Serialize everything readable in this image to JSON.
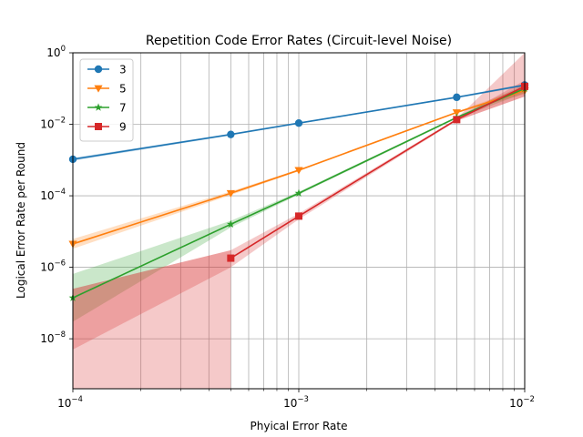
{
  "chart_data": {
    "type": "line",
    "title": "Repetition Code Error Rates (Circuit-level Noise)",
    "xlabel": "Phyical Error Rate",
    "ylabel": "Logical Error Rate per Round",
    "xscale": "log",
    "yscale": "log",
    "xlim": [
      0.0001,
      0.01
    ],
    "ylim": [
      4e-10,
      1
    ],
    "grid": true,
    "legend": "top-left",
    "x_ticks": [
      {
        "value": 0.0001,
        "base": "10",
        "exp": "−4"
      },
      {
        "value": 0.001,
        "base": "10",
        "exp": "−3"
      },
      {
        "value": 0.01,
        "base": "10",
        "exp": "−2"
      }
    ],
    "y_ticks": [
      {
        "value": 1e-08,
        "base": "10",
        "exp": "−8"
      },
      {
        "value": 1e-06,
        "base": "10",
        "exp": "−6"
      },
      {
        "value": 0.0001,
        "base": "10",
        "exp": "−4"
      },
      {
        "value": 0.01,
        "base": "10",
        "exp": "−2"
      },
      {
        "value": 1,
        "base": "10",
        "exp": "0"
      }
    ],
    "series": [
      {
        "name": "3",
        "color": "#1f77b4",
        "marker": "circle",
        "x": [
          0.0001,
          0.0005,
          0.001,
          0.005,
          0.01
        ],
        "y": [
          0.00105,
          0.0052,
          0.0108,
          0.057,
          0.125
        ],
        "band_low": [
          0.00095,
          0.0049,
          0.0103,
          0.054,
          0.115
        ],
        "band_high": [
          0.00115,
          0.0055,
          0.0113,
          0.06,
          0.135
        ]
      },
      {
        "name": "5",
        "color": "#ff7f0e",
        "marker": "triangle-down",
        "x": [
          0.0001,
          0.0005,
          0.001,
          0.005,
          0.01
        ],
        "y": [
          4.5e-06,
          0.000118,
          0.00052,
          0.0215,
          0.088
        ],
        "band_low": [
          3.3e-06,
          0.000105,
          0.00049,
          0.0205,
          0.07
        ],
        "band_high": [
          6.2e-06,
          0.000133,
          0.00055,
          0.0225,
          0.11
        ]
      },
      {
        "name": "7",
        "color": "#2ca02c",
        "marker": "star",
        "x": [
          0.0001,
          0.0005,
          0.001,
          0.005,
          0.01
        ],
        "y": [
          1.4e-07,
          1.6e-05,
          0.000118,
          0.0155,
          0.1
        ],
        "band_low": [
          3e-08,
          1.3e-05,
          0.000108,
          0.0145,
          0.075
        ],
        "band_high": [
          6.5e-07,
          2e-05,
          0.00013,
          0.0165,
          0.13
        ]
      },
      {
        "name": "9",
        "color": "#d62728",
        "marker": "square",
        "x": [
          0.0005,
          0.001,
          0.005,
          0.01
        ],
        "y": [
          1.8e-06,
          2.7e-05,
          0.0135,
          0.115
        ],
        "band_low": [
          1e-06,
          2.2e-05,
          0.0125,
          0.06
        ],
        "band_high": [
          3e-06,
          3.2e-05,
          0.0145,
          0.17
        ]
      }
    ],
    "bands_extra": [
      {
        "name": "9",
        "x": [
          0.0001,
          0.0005
        ],
        "low": [
          4e-10,
          4e-10
        ],
        "high": [
          2.5e-07,
          3e-06
        ],
        "color": "#d62728"
      },
      {
        "name": "9",
        "x": [
          0.0001,
          0.0005
        ],
        "low": [
          5e-09,
          1e-06
        ],
        "high": [
          2.5e-07,
          3e-06
        ],
        "color": "#d62728"
      },
      {
        "name": "9",
        "x": [
          0.005,
          0.01
        ],
        "low": [
          0.0125,
          0.06
        ],
        "high": [
          0.0145,
          1.0
        ],
        "color": "#d62728"
      }
    ]
  }
}
